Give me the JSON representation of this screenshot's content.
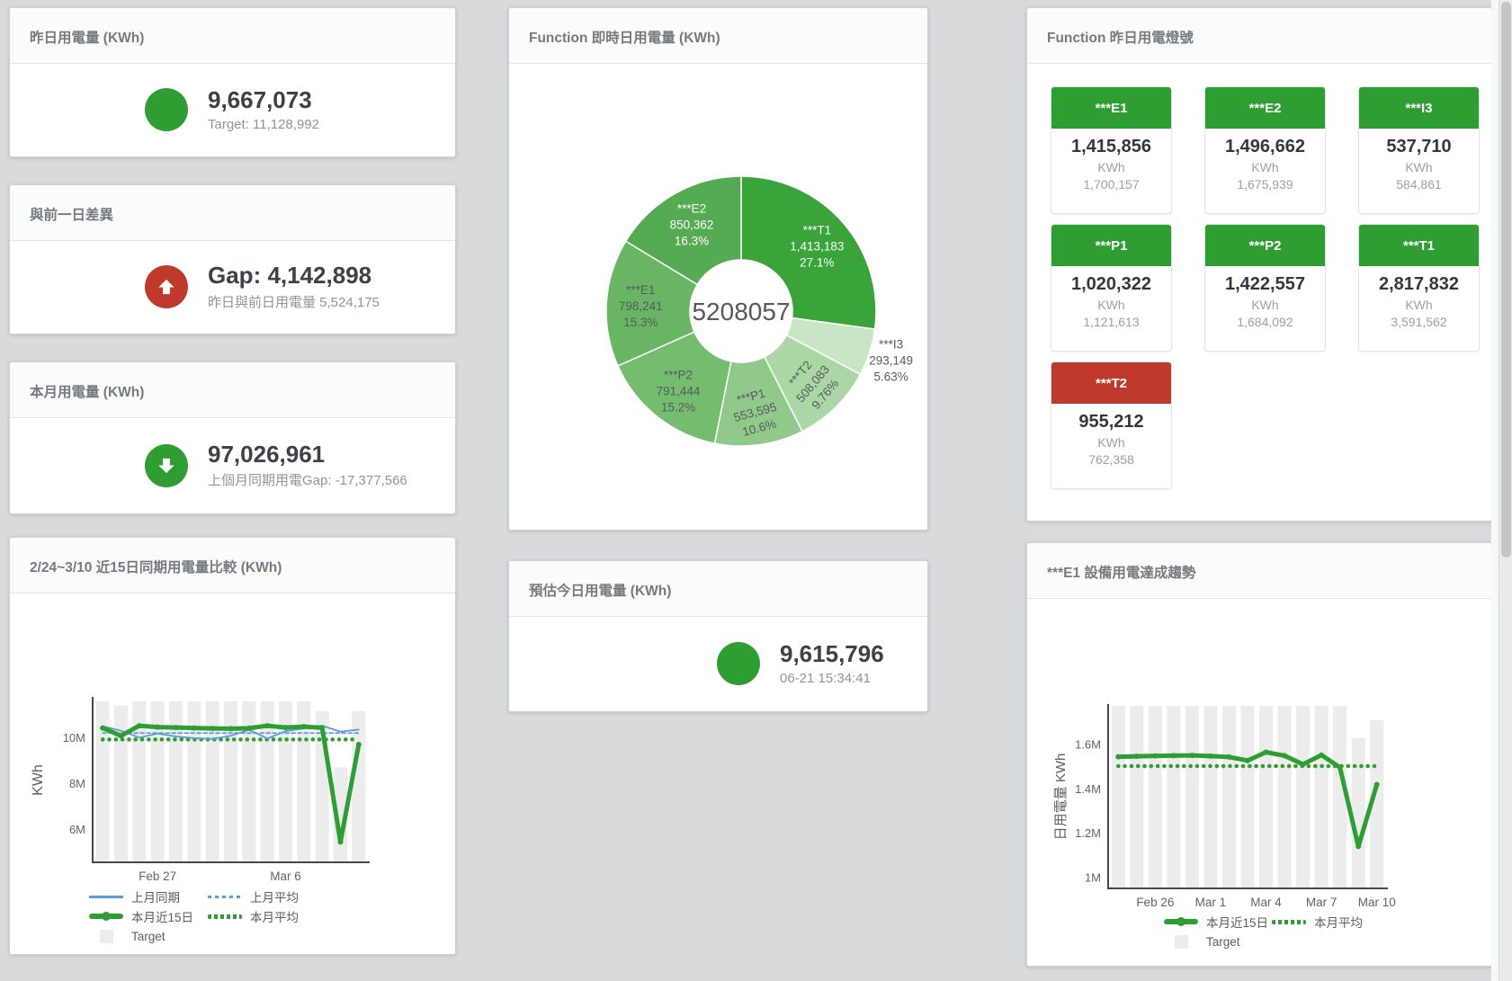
{
  "colors": {
    "green": "#2f9e32",
    "red": "#c03a2b",
    "blue": "#5b9cd6",
    "bar_fill": "#ececec"
  },
  "panels": {
    "yesterday": {
      "title": "昨日用電量 (KWh)",
      "value": "9,667,073",
      "subtitle": "Target: 11,128,992"
    },
    "gap_prev_day": {
      "title": "與前一日差異",
      "value": "Gap: 4,142,898",
      "subtitle": "昨日與前日用電量 5,524,175"
    },
    "month": {
      "title": "本月用電量 (KWh)",
      "value": "97,026,961",
      "subtitle": "上個月同期用電Gap: -17,377,566"
    },
    "realtime_pie": {
      "title": "Function 即時日用電量 (KWh)"
    },
    "lights": {
      "title": "Function 昨日用電燈號",
      "unit": "KWh",
      "tiles": [
        {
          "label": "***E1",
          "value": "1,415,856",
          "target": "1,700,157",
          "status": "green"
        },
        {
          "label": "***E2",
          "value": "1,496,662",
          "target": "1,675,939",
          "status": "green"
        },
        {
          "label": "***I3",
          "value": "537,710",
          "target": "584,861",
          "status": "green"
        },
        {
          "label": "***P1",
          "value": "1,020,322",
          "target": "1,121,613",
          "status": "green"
        },
        {
          "label": "***P2",
          "value": "1,422,557",
          "target": "1,684,092",
          "status": "green"
        },
        {
          "label": "***T1",
          "value": "2,817,832",
          "target": "3,591,562",
          "status": "green"
        },
        {
          "label": "***T2",
          "value": "955,212",
          "target": "762,358",
          "status": "red"
        }
      ]
    },
    "compare": {
      "title": "2/24~3/10 近15日同期用電量比較 (KWh)"
    },
    "estimate": {
      "title": "預估今日用電量 (KWh)",
      "value": "9,615,796",
      "subtitle": "06-21 15:34:41"
    },
    "e1_trend": {
      "title": "***E1 設備用電達成趨勢"
    }
  },
  "chart_data": [
    {
      "type": "pie",
      "id": "realtime_pie",
      "title": "Function 即時日用電量 (KWh)",
      "center_total": "5208057",
      "legend_position": "none",
      "hole": true,
      "slices": [
        {
          "name": "***T1",
          "value": 1413183,
          "display": "1,413,183",
          "pct": "27.1%",
          "color": "#3aa33a",
          "label_style": "light"
        },
        {
          "name": "***I3",
          "value": 293149,
          "display": "293,149",
          "pct": "5.63%",
          "color": "#c9e6c4",
          "label_style": "dark",
          "label_outside": true
        },
        {
          "name": "***T2",
          "value": 508083,
          "display": "508,083",
          "pct": "9.76%",
          "color": "#abd7a4",
          "label_style": "dark",
          "label_rotate": -50
        },
        {
          "name": "***P1",
          "value": 553595,
          "display": "553,595",
          "pct": "10.6%",
          "color": "#90c98a",
          "label_style": "dark",
          "label_rotate": -15
        },
        {
          "name": "***P2",
          "value": 791444,
          "display": "791,444",
          "pct": "15.2%",
          "color": "#74bd6e",
          "label_style": "dark"
        },
        {
          "name": "***E1",
          "value": 798241,
          "display": "798,241",
          "pct": "15.3%",
          "color": "#68b563",
          "label_style": "dark"
        },
        {
          "name": "***E2",
          "value": 850362,
          "display": "850,362",
          "pct": "16.3%",
          "color": "#55ab52",
          "label_style": "light"
        }
      ]
    },
    {
      "type": "line",
      "id": "compare15",
      "title": "2/24~3/10 近15日同期用電量比較 (KWh)",
      "ylabel": "KWh",
      "target_label": "Target",
      "grid": false,
      "legend_position": "bottom",
      "categories": [
        "2/24",
        "2/25",
        "2/26",
        "2/27",
        "2/28",
        "3/1",
        "3/2",
        "3/3",
        "3/4",
        "3/5",
        "3/6",
        "3/7",
        "3/8",
        "3/9",
        "3/10"
      ],
      "ylim": [
        4600000,
        11700000
      ],
      "yticks": [
        {
          "v": 6000000,
          "label": "6M"
        },
        {
          "v": 8000000,
          "label": "8M"
        },
        {
          "v": 10000000,
          "label": "10M"
        }
      ],
      "xticks": [
        {
          "i": 3,
          "label": "Feb 27"
        },
        {
          "i": 10,
          "label": "Mar 6"
        }
      ],
      "target_bars": [
        11580000,
        11400000,
        11580000,
        11580000,
        11580000,
        11580000,
        11580000,
        11580000,
        11580000,
        11580000,
        11580000,
        11580000,
        11150000,
        8700000,
        11150000
      ],
      "series": [
        {
          "name": "上月平均",
          "style": "dashed",
          "color": "#5b9cd6",
          "width": 1.7,
          "value": 10200000
        },
        {
          "name": "本月平均",
          "style": "dotted",
          "color": "#2f9e32",
          "width": 4.5,
          "value": 9920000
        },
        {
          "name": "上月同期",
          "style": "solid",
          "color": "#5b9cd6",
          "width": 1.8,
          "values": [
            10500000,
            10300000,
            10000000,
            10180000,
            10050000,
            9980000,
            9950000,
            10080000,
            10340000,
            9960000,
            10280000,
            10400000,
            10520000,
            10260000,
            10350000
          ]
        },
        {
          "name": "本月近15日",
          "style": "solid",
          "color": "#2f9e32",
          "width": 5,
          "dots": true,
          "values": [
            10420000,
            10080000,
            10520000,
            10460000,
            10440000,
            10420000,
            10400000,
            10390000,
            10410000,
            10520000,
            10440000,
            10480000,
            10430000,
            5450000,
            9700000
          ]
        }
      ]
    },
    {
      "type": "line",
      "id": "e1_trend",
      "title": "***E1 設備用電達成趨勢",
      "ylabel": "日用電量 KWh",
      "target_label": "Target",
      "grid": false,
      "legend_position": "bottom",
      "categories": [
        "2/24",
        "2/25",
        "2/26",
        "2/27",
        "2/28",
        "3/1",
        "3/2",
        "3/3",
        "3/4",
        "3/5",
        "3/6",
        "3/7",
        "3/8",
        "3/9",
        "3/10"
      ],
      "ylim": [
        955000,
        1775000
      ],
      "yticks": [
        {
          "v": 1000000,
          "label": "1M"
        },
        {
          "v": 1200000,
          "label": "1.2M"
        },
        {
          "v": 1400000,
          "label": "1.4M"
        },
        {
          "v": 1600000,
          "label": "1.6M"
        }
      ],
      "xticks": [
        {
          "i": 2,
          "label": "Feb 26"
        },
        {
          "i": 5,
          "label": "Mar 1"
        },
        {
          "i": 8,
          "label": "Mar 4"
        },
        {
          "i": 11,
          "label": "Mar 7"
        },
        {
          "i": 14,
          "label": "Mar 10"
        }
      ],
      "target_bars": [
        1775000,
        1775000,
        1775000,
        1775000,
        1775000,
        1775000,
        1775000,
        1775000,
        1775000,
        1775000,
        1775000,
        1775000,
        1775000,
        1630000,
        1710000
      ],
      "series": [
        {
          "name": "本月平均",
          "style": "dotted",
          "color": "#2f9e32",
          "width": 4.5,
          "value": 1503000
        },
        {
          "name": "本月近15日",
          "style": "solid",
          "color": "#2f9e32",
          "width": 5,
          "dots": true,
          "values": [
            1545000,
            1547000,
            1549000,
            1550000,
            1551000,
            1548000,
            1544000,
            1528000,
            1566000,
            1550000,
            1511000,
            1553000,
            1497000,
            1140000,
            1420000
          ]
        }
      ]
    }
  ]
}
